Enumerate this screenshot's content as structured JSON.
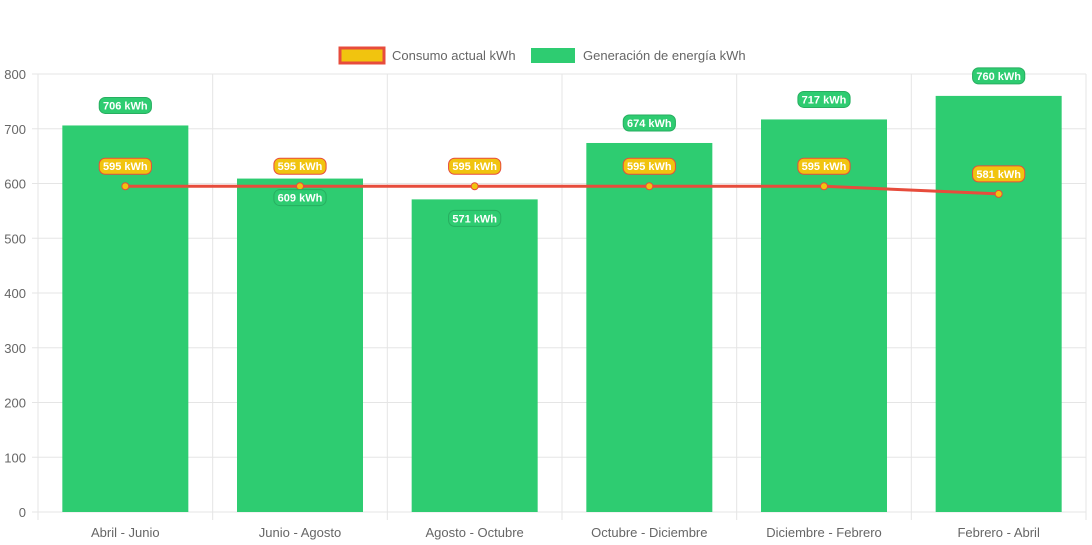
{
  "chart_data": {
    "type": "bar",
    "categories": [
      "Abril - Junio",
      "Junio - Agosto",
      "Agosto - Octubre",
      "Octubre - Diciembre",
      "Diciembre - Febrero",
      "Febrero - Abril"
    ],
    "series": [
      {
        "name": "Consumo actual kWh",
        "type": "line",
        "values": [
          595,
          595,
          595,
          595,
          595,
          581
        ],
        "color": "#e74c3c",
        "fill": "#f1c40f"
      },
      {
        "name": "Generación de energía kWh",
        "type": "bar",
        "values": [
          706,
          609,
          571,
          674,
          717,
          760
        ],
        "color": "#2ecc71"
      }
    ],
    "data_label_suffix": " kWh",
    "ylim": [
      0,
      800
    ],
    "yticks": [
      0,
      100,
      200,
      300,
      400,
      500,
      600,
      700,
      800
    ],
    "grid": true,
    "legend": "top-center",
    "title": "",
    "xlabel": "",
    "ylabel": ""
  }
}
